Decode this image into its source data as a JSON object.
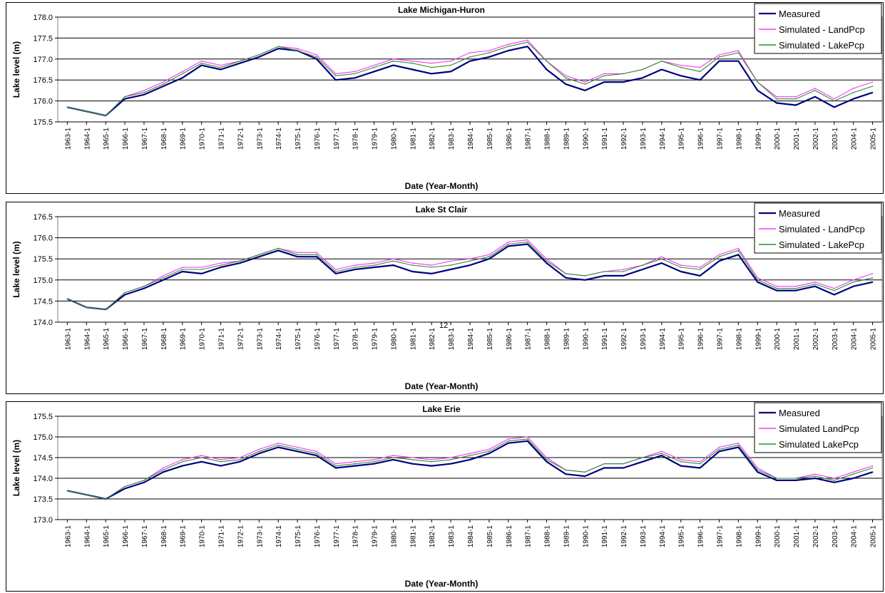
{
  "colors": {
    "measured": "#000080",
    "land": "#ff33ff",
    "lake": "#2f8f2f",
    "lake_dark": "#555555"
  },
  "note": "12",
  "chart_data": [
    {
      "type": "line",
      "title": "Lake Michigan-Huron",
      "xlabel": "Date (Year-Month)",
      "ylabel": "Lake level (m)",
      "ylim": [
        175.5,
        178.0
      ],
      "yticks": [
        "175.5",
        "176.0",
        "176.5",
        "177.0",
        "177.5",
        "178.0"
      ],
      "xticks": [
        "1963-1",
        "1964-1",
        "1965-1",
        "1966-1",
        "1967-1",
        "1968-1",
        "1969-1",
        "1970-1",
        "1971-1",
        "1972-1",
        "1973-1",
        "1974-1",
        "1975-1",
        "1976-1",
        "1977-1",
        "1978-1",
        "1979-1",
        "1980-1",
        "1981-1",
        "1982-1",
        "1983-1",
        "1984-1",
        "1985-1",
        "1986-1",
        "1987-1",
        "1988-1",
        "1989-1",
        "1990-1",
        "1991-1",
        "1992-1",
        "1993-1",
        "1994-1",
        "1995-1",
        "1996-1",
        "1997-1",
        "1998-1",
        "1999-1",
        "2000-1",
        "2001-1",
        "2002-1",
        "2003-1",
        "2004-1",
        "2005-1"
      ],
      "grid": true,
      "legend": "top-right",
      "x": [
        "1963",
        "1964",
        "1965",
        "1966",
        "1967",
        "1968",
        "1969",
        "1970",
        "1971",
        "1972",
        "1973",
        "1974",
        "1975",
        "1976",
        "1977",
        "1978",
        "1979",
        "1980",
        "1981",
        "1982",
        "1983",
        "1984",
        "1985",
        "1986",
        "1987",
        "1988",
        "1989",
        "1990",
        "1991",
        "1992",
        "1993",
        "1994",
        "1995",
        "1996",
        "1997",
        "1998",
        "1999",
        "2000",
        "2001",
        "2002",
        "2003",
        "2004",
        "2005"
      ],
      "series": [
        {
          "name": "Measured",
          "values": [
            175.85,
            175.75,
            175.65,
            176.05,
            176.15,
            176.35,
            176.55,
            176.85,
            176.75,
            176.9,
            177.05,
            177.25,
            177.2,
            177.0,
            176.5,
            176.55,
            176.7,
            176.85,
            176.75,
            176.65,
            176.7,
            176.95,
            177.05,
            177.2,
            177.3,
            176.75,
            176.4,
            176.25,
            176.45,
            176.45,
            176.55,
            176.75,
            176.6,
            176.5,
            176.95,
            176.95,
            176.25,
            175.95,
            175.9,
            176.1,
            175.85,
            176.05,
            176.2
          ]
        },
        {
          "name": "Simulated - LandPcp",
          "values": [
            175.85,
            175.75,
            175.65,
            176.1,
            176.25,
            176.45,
            176.7,
            176.95,
            176.85,
            176.95,
            177.1,
            177.3,
            177.25,
            177.1,
            176.65,
            176.7,
            176.85,
            177.0,
            176.95,
            176.9,
            176.95,
            177.15,
            177.2,
            177.35,
            177.45,
            176.95,
            176.6,
            176.45,
            176.65,
            176.65,
            176.75,
            176.95,
            176.85,
            176.8,
            177.1,
            177.2,
            176.45,
            176.1,
            176.1,
            176.3,
            176.05,
            176.3,
            176.45
          ]
        },
        {
          "name": "Simulated - LakePcp",
          "values": [
            175.85,
            175.75,
            175.65,
            176.1,
            176.2,
            176.4,
            176.65,
            176.9,
            176.8,
            176.95,
            177.1,
            177.3,
            177.2,
            177.05,
            176.6,
            176.65,
            176.8,
            176.95,
            176.9,
            176.8,
            176.85,
            177.05,
            177.15,
            177.3,
            177.4,
            176.95,
            176.55,
            176.4,
            176.6,
            176.65,
            176.75,
            176.95,
            176.8,
            176.7,
            177.05,
            177.15,
            176.45,
            176.05,
            176.05,
            176.25,
            176.0,
            176.2,
            176.35
          ]
        }
      ]
    },
    {
      "type": "line",
      "title": "Lake St Clair",
      "xlabel": "Date (Year-Month)",
      "ylabel": "Lake level (m)",
      "ylim": [
        174.0,
        176.5
      ],
      "yticks": [
        "174.0",
        "174.5",
        "175.0",
        "175.5",
        "176.0",
        "176.5"
      ],
      "xticks": [
        "1963-1",
        "1964-1",
        "1965-1",
        "1966-1",
        "1967-1",
        "1968-1",
        "1969-1",
        "1970-1",
        "1971-1",
        "1972-1",
        "1973-1",
        "1974-1",
        "1975-1",
        "1976-1",
        "1977-1",
        "1978-1",
        "1979-1",
        "1980-1",
        "1981-1",
        "1982-1",
        "1983-1",
        "1984-1",
        "1985-1",
        "1986-1",
        "1987-1",
        "1988-1",
        "1989-1",
        "1990-1",
        "1991-1",
        "1992-1",
        "1993-1",
        "1994-1",
        "1995-1",
        "1996-1",
        "1997-1",
        "1998-1",
        "1999-1",
        "2000-1",
        "2001-1",
        "2002-1",
        "2003-1",
        "2004-1",
        "2005-1"
      ],
      "grid": true,
      "legend": "top-right",
      "x": [
        "1963",
        "1964",
        "1965",
        "1966",
        "1967",
        "1968",
        "1969",
        "1970",
        "1971",
        "1972",
        "1973",
        "1974",
        "1975",
        "1976",
        "1977",
        "1978",
        "1979",
        "1980",
        "1981",
        "1982",
        "1983",
        "1984",
        "1985",
        "1986",
        "1987",
        "1988",
        "1989",
        "1990",
        "1991",
        "1992",
        "1993",
        "1994",
        "1995",
        "1996",
        "1997",
        "1998",
        "1999",
        "2000",
        "2001",
        "2002",
        "2003",
        "2004",
        "2005"
      ],
      "series": [
        {
          "name": "Measured",
          "values": [
            174.55,
            174.35,
            174.3,
            174.65,
            174.8,
            175.0,
            175.2,
            175.15,
            175.3,
            175.4,
            175.55,
            175.7,
            175.55,
            175.55,
            175.15,
            175.25,
            175.3,
            175.35,
            175.2,
            175.15,
            175.25,
            175.35,
            175.5,
            175.8,
            175.85,
            175.4,
            175.05,
            175.0,
            175.1,
            175.1,
            175.25,
            175.4,
            175.2,
            175.1,
            175.45,
            175.6,
            174.95,
            174.75,
            174.75,
            174.85,
            174.65,
            174.85,
            174.95
          ]
        },
        {
          "name": "Simulated - LandPcp",
          "values": [
            174.55,
            174.35,
            174.3,
            174.7,
            174.85,
            175.1,
            175.3,
            175.3,
            175.4,
            175.45,
            175.6,
            175.75,
            175.65,
            175.65,
            175.25,
            175.35,
            175.4,
            175.5,
            175.4,
            175.35,
            175.45,
            175.5,
            175.6,
            175.9,
            175.95,
            175.5,
            175.15,
            175.1,
            175.2,
            175.25,
            175.35,
            175.55,
            175.35,
            175.3,
            175.6,
            175.75,
            175.05,
            174.85,
            174.85,
            174.95,
            174.8,
            175.0,
            175.15
          ]
        },
        {
          "name": "Simulated - LakePcp",
          "values": [
            174.55,
            174.35,
            174.3,
            174.7,
            174.85,
            175.05,
            175.25,
            175.25,
            175.35,
            175.45,
            175.6,
            175.75,
            175.6,
            175.6,
            175.2,
            175.3,
            175.35,
            175.45,
            175.35,
            175.3,
            175.35,
            175.45,
            175.55,
            175.85,
            175.9,
            175.45,
            175.15,
            175.1,
            175.2,
            175.2,
            175.35,
            175.5,
            175.3,
            175.25,
            175.55,
            175.7,
            175.0,
            174.8,
            174.8,
            174.9,
            174.75,
            174.95,
            175.05
          ]
        }
      ]
    },
    {
      "type": "line",
      "title": "Lake Erie",
      "xlabel": "Date (Year-Month)",
      "ylabel": "Lake level (m)",
      "ylim": [
        173.0,
        175.5
      ],
      "yticks": [
        "173.0",
        "173.5",
        "174.0",
        "174.5",
        "175.0",
        "175.5"
      ],
      "xticks": [
        "1963-1",
        "1964-1",
        "1965-1",
        "1966-1",
        "1967-1",
        "1968-1",
        "1969-1",
        "1970-1",
        "1971-1",
        "1972-1",
        "1973-1",
        "1974-1",
        "1975-1",
        "1976-1",
        "1977-1",
        "1978-1",
        "1979-1",
        "1980-1",
        "1981-1",
        "1982-1",
        "1983-1",
        "1984-1",
        "1985-1",
        "1986-1",
        "1987-1",
        "1988-1",
        "1989-1",
        "1990-1",
        "1991-1",
        "1992-1",
        "1993-1",
        "1994-1",
        "1995-1",
        "1996-1",
        "1997-1",
        "1998-1",
        "1999-1",
        "2000-1",
        "2001-1",
        "2002-1",
        "2003-1",
        "2004-1",
        "2005-1"
      ],
      "grid": true,
      "legend": "top-right",
      "x": [
        "1963",
        "1964",
        "1965",
        "1966",
        "1967",
        "1968",
        "1969",
        "1970",
        "1971",
        "1972",
        "1973",
        "1974",
        "1975",
        "1976",
        "1977",
        "1978",
        "1979",
        "1980",
        "1981",
        "1982",
        "1983",
        "1984",
        "1985",
        "1986",
        "1987",
        "1988",
        "1989",
        "1990",
        "1991",
        "1992",
        "1993",
        "1994",
        "1995",
        "1996",
        "1997",
        "1998",
        "1999",
        "2000",
        "2001",
        "2002",
        "2003",
        "2004",
        "2005"
      ],
      "series": [
        {
          "name": "Measured",
          "values": [
            173.7,
            173.6,
            173.5,
            173.75,
            173.9,
            174.15,
            174.3,
            174.4,
            174.3,
            174.4,
            174.6,
            174.75,
            174.65,
            174.55,
            174.25,
            174.3,
            174.35,
            174.45,
            174.35,
            174.3,
            174.35,
            174.45,
            174.6,
            174.85,
            174.9,
            174.4,
            174.1,
            174.05,
            174.25,
            174.25,
            174.4,
            174.55,
            174.3,
            174.25,
            174.65,
            174.75,
            174.15,
            173.95,
            173.95,
            174.0,
            173.9,
            174.0,
            174.15
          ]
        },
        {
          "name": "Simulated LandPcp",
          "values": [
            173.7,
            173.6,
            173.5,
            173.8,
            173.95,
            174.25,
            174.45,
            174.55,
            174.45,
            174.5,
            174.7,
            174.85,
            174.75,
            174.65,
            174.35,
            174.4,
            174.45,
            174.55,
            174.5,
            174.45,
            174.5,
            174.6,
            174.7,
            174.95,
            175.0,
            174.5,
            174.2,
            174.15,
            174.35,
            174.35,
            174.5,
            174.65,
            174.45,
            174.4,
            174.75,
            174.85,
            174.25,
            174.0,
            174.0,
            174.1,
            174.0,
            174.15,
            174.3
          ]
        },
        {
          "name": "Simulated LakePcp",
          "values": [
            173.7,
            173.6,
            173.5,
            173.8,
            173.95,
            174.2,
            174.4,
            174.5,
            174.4,
            174.45,
            174.65,
            174.8,
            174.7,
            174.6,
            174.3,
            174.35,
            174.4,
            174.5,
            174.45,
            174.4,
            174.45,
            174.55,
            174.65,
            174.9,
            174.95,
            174.45,
            174.2,
            174.15,
            174.35,
            174.35,
            174.5,
            174.6,
            174.4,
            174.35,
            174.7,
            174.8,
            174.2,
            174.0,
            174.0,
            174.05,
            173.95,
            174.1,
            174.25
          ]
        }
      ]
    }
  ]
}
